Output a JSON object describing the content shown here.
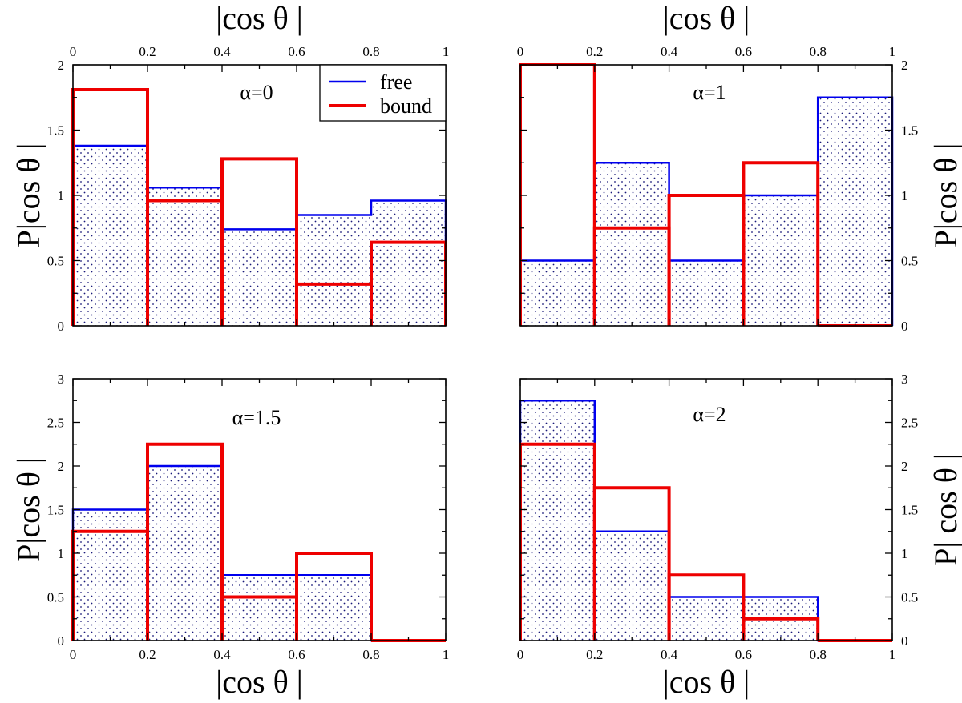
{
  "colors": {
    "free": "#0000ee",
    "bound": "#ee0000",
    "dots": "#1a1a7a"
  },
  "legend": [
    {
      "name": "free",
      "color": "#0000ee"
    },
    {
      "name": "bound",
      "color": "#ee0000"
    }
  ],
  "chart_data": [
    {
      "type": "histogram",
      "annotation": "α=0",
      "xlabel": "|cos θ |",
      "ylabel": "P|cos θ |",
      "xlim": [
        0,
        1
      ],
      "ylim": [
        0,
        2
      ],
      "xticks": [
        "0",
        "0.2",
        "0.4",
        "0.6",
        "0.8",
        "1"
      ],
      "yticks": [
        "0",
        "0.5",
        "1",
        "1.5",
        "2"
      ],
      "bins": [
        0,
        0.2,
        0.4,
        0.6,
        0.8,
        1.0
      ],
      "series": [
        {
          "name": "free",
          "values": [
            1.38,
            1.06,
            0.74,
            0.85,
            0.96
          ]
        },
        {
          "name": "bound",
          "values": [
            1.81,
            0.96,
            1.28,
            0.32,
            0.64
          ]
        }
      ]
    },
    {
      "type": "histogram",
      "annotation": "α=1",
      "xlabel": "|cos θ |",
      "ylabel": "P|cos θ |",
      "xlim": [
        0,
        1
      ],
      "ylim": [
        0,
        2
      ],
      "xticks": [
        "0",
        "0.2",
        "0.4",
        "0.6",
        "0.8",
        "1"
      ],
      "yticks": [
        "0",
        "0.5",
        "1",
        "1.5",
        "2"
      ],
      "bins": [
        0,
        0.2,
        0.4,
        0.6,
        0.8,
        1.0
      ],
      "series": [
        {
          "name": "free",
          "values": [
            0.5,
            1.25,
            0.5,
            1.0,
            1.75
          ]
        },
        {
          "name": "bound",
          "values": [
            2.0,
            0.75,
            1.0,
            1.25,
            0.0
          ]
        }
      ]
    },
    {
      "type": "histogram",
      "annotation": "α=1.5",
      "xlabel": "|cos θ |",
      "ylabel": "P|cos θ |",
      "xlim": [
        0,
        1
      ],
      "ylim": [
        0,
        3
      ],
      "xticks": [
        "0",
        "0.2",
        "0.4",
        "0.6",
        "0.8",
        "1"
      ],
      "yticks": [
        "0",
        "0.5",
        "1",
        "1.5",
        "2",
        "2.5",
        "3"
      ],
      "bins": [
        0,
        0.2,
        0.4,
        0.6,
        0.8,
        1.0
      ],
      "series": [
        {
          "name": "free",
          "values": [
            1.5,
            2.0,
            0.75,
            0.75,
            0.0
          ]
        },
        {
          "name": "bound",
          "values": [
            1.25,
            2.25,
            0.5,
            1.0,
            0.0
          ]
        }
      ]
    },
    {
      "type": "histogram",
      "annotation": "α=2",
      "xlabel": "|cos θ |",
      "ylabel": "P| cos θ |",
      "xlim": [
        0,
        1
      ],
      "ylim": [
        0,
        3
      ],
      "xticks": [
        "0",
        "0.2",
        "0.4",
        "0.6",
        "0.8",
        "1"
      ],
      "yticks": [
        "0",
        "0.5",
        "1",
        "1.5",
        "2",
        "2.5",
        "3"
      ],
      "bins": [
        0,
        0.2,
        0.4,
        0.6,
        0.8,
        1.0
      ],
      "series": [
        {
          "name": "free",
          "values": [
            2.75,
            1.25,
            0.5,
            0.5,
            0.0
          ]
        },
        {
          "name": "bound",
          "values": [
            2.25,
            1.75,
            0.75,
            0.25,
            0.0
          ]
        }
      ]
    }
  ]
}
